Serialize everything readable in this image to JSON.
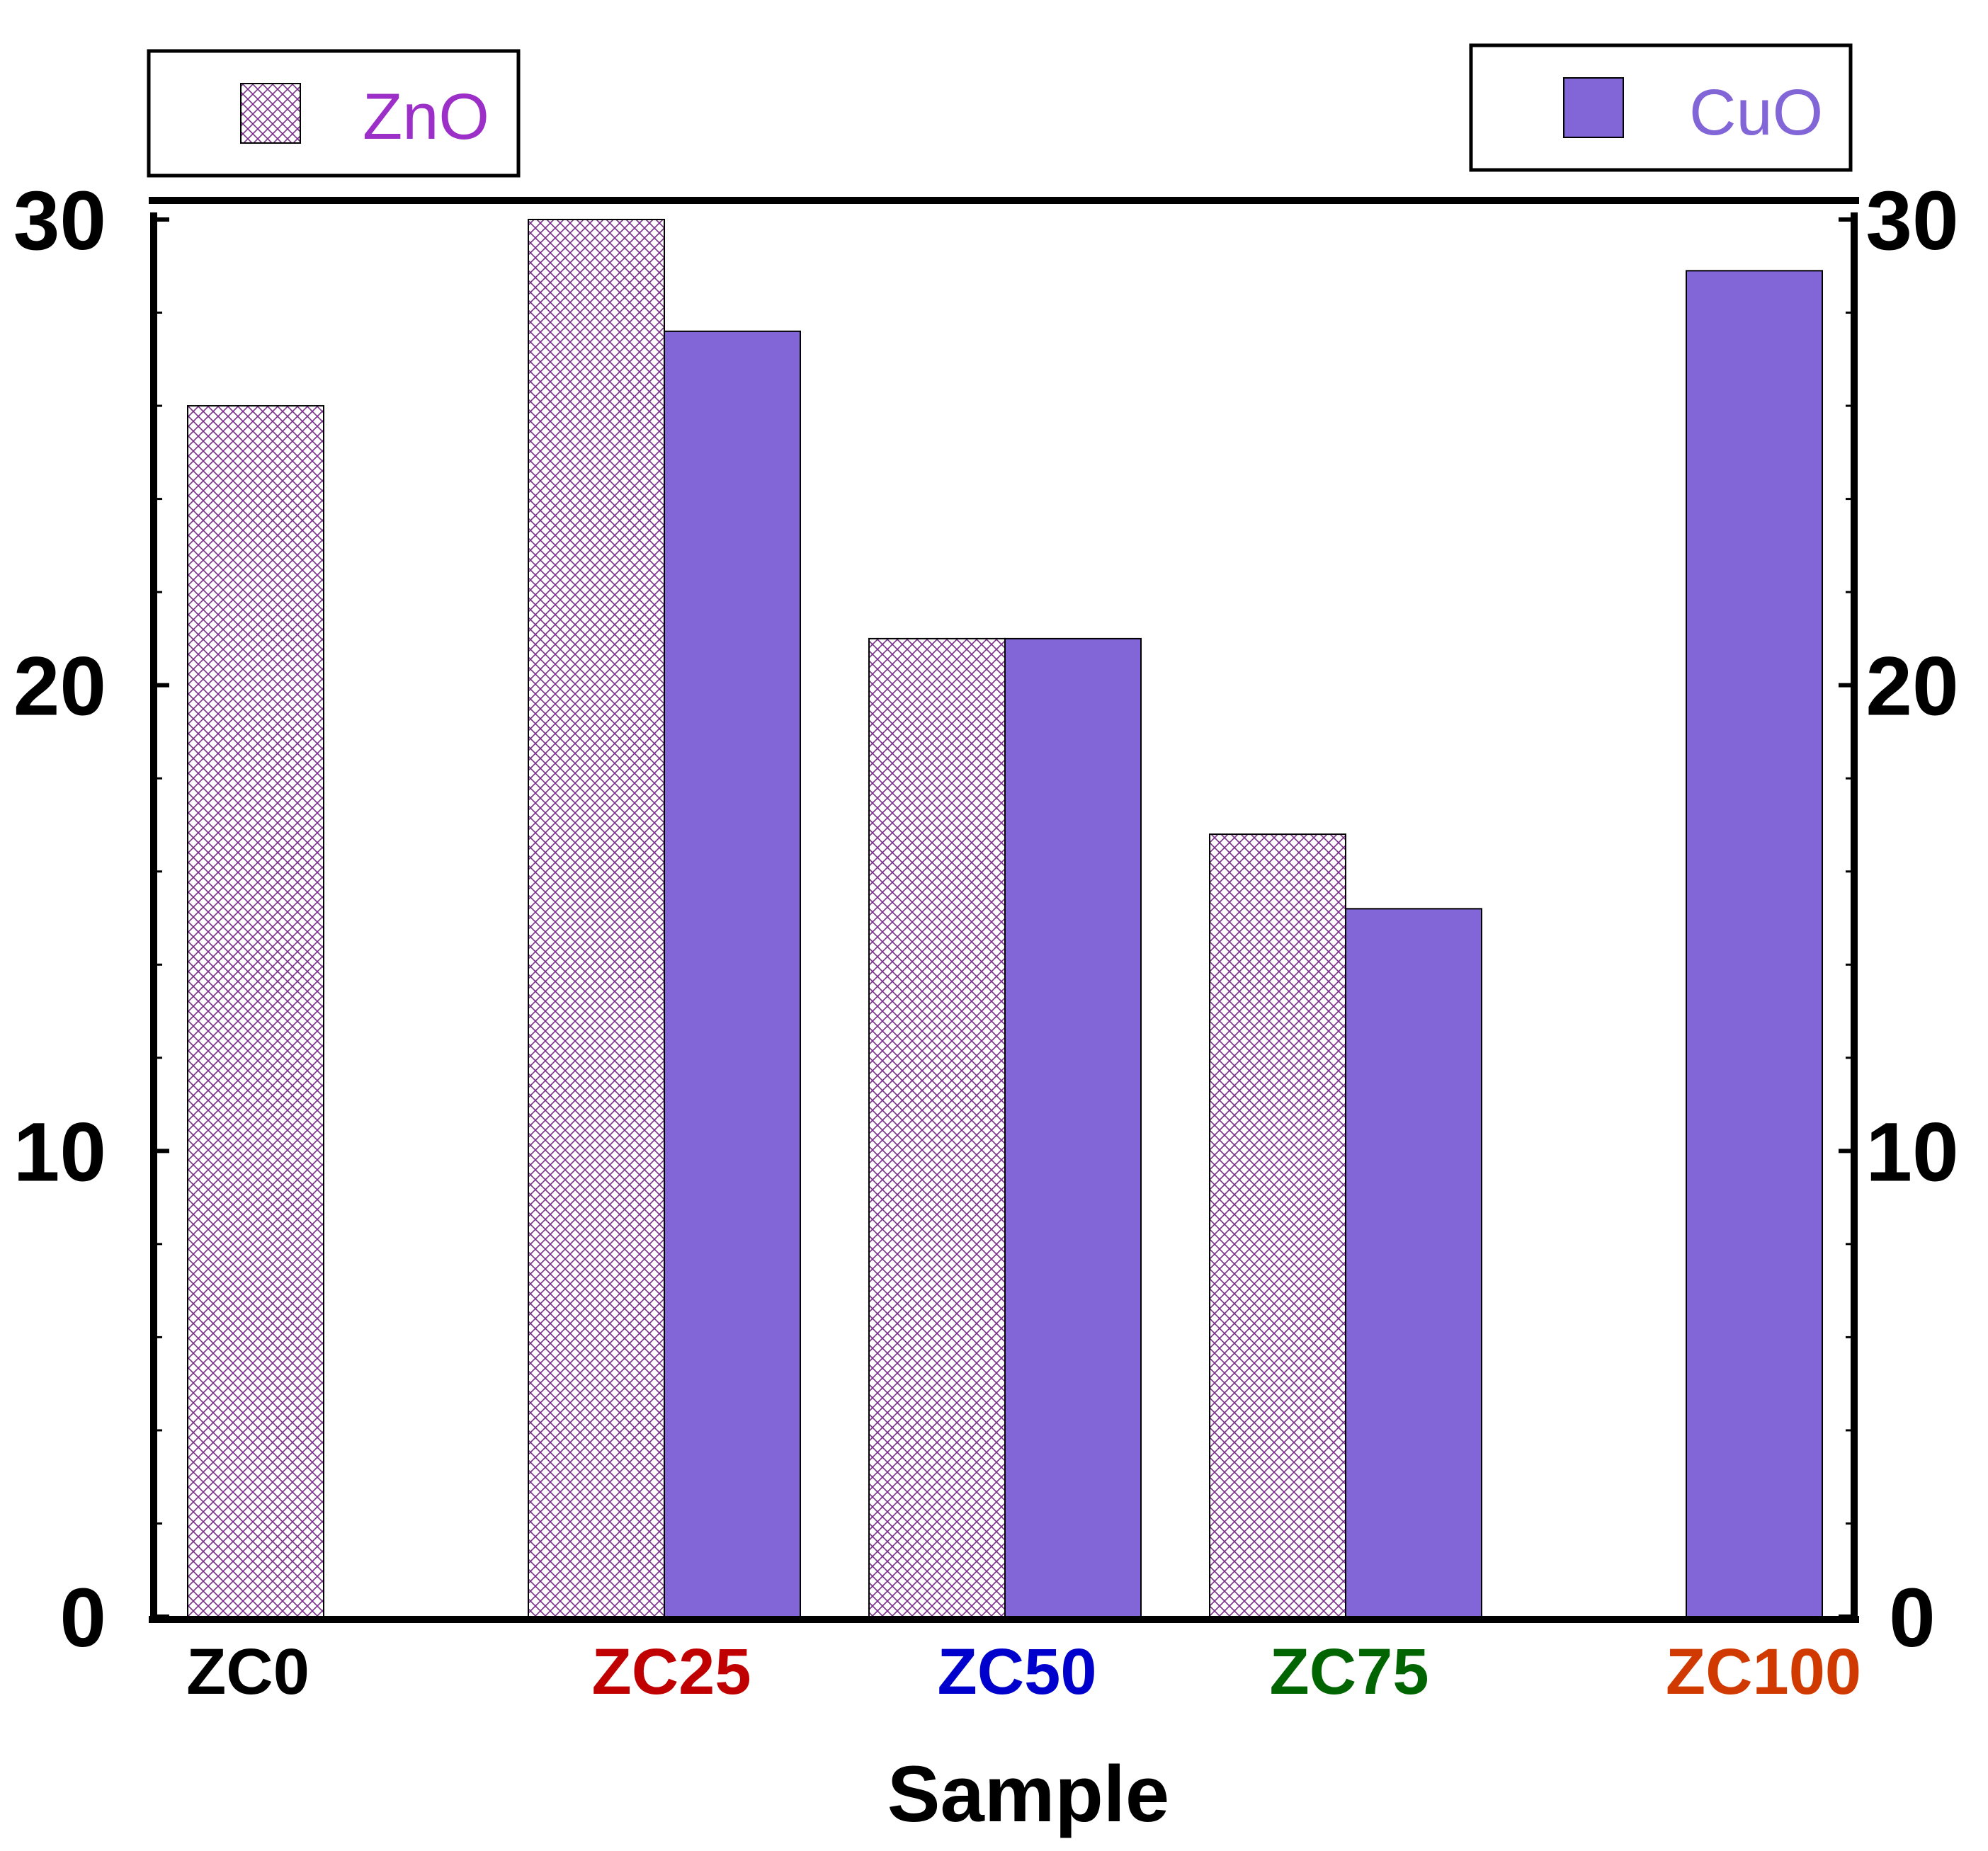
{
  "chart_data": {
    "type": "bar",
    "xlabel": "Sample",
    "ylabel": "",
    "ylim": [
      0,
      30
    ],
    "yticks": [
      "0",
      "10",
      "20",
      "30"
    ],
    "categories": [
      "ZC0",
      "ZC25",
      "ZC50",
      "ZC75",
      "ZC100"
    ],
    "category_colors": [
      "#000000",
      "#c00000",
      "#0000cc",
      "#006400",
      "#d03a00"
    ],
    "series": [
      {
        "name": "ZnO",
        "pattern": "crosshatch",
        "color": "#7a2d8a",
        "text_color": "#9b2fc8",
        "values": [
          26.0,
          30.0,
          21.0,
          16.8,
          null
        ]
      },
      {
        "name": "CuO",
        "pattern": "solid",
        "color": "#8266d8",
        "text_color": "#8266d8",
        "values": [
          null,
          27.6,
          21.0,
          15.2,
          28.9
        ]
      }
    ],
    "legend": [
      "top-left",
      "top-right"
    ],
    "grid": false
  }
}
